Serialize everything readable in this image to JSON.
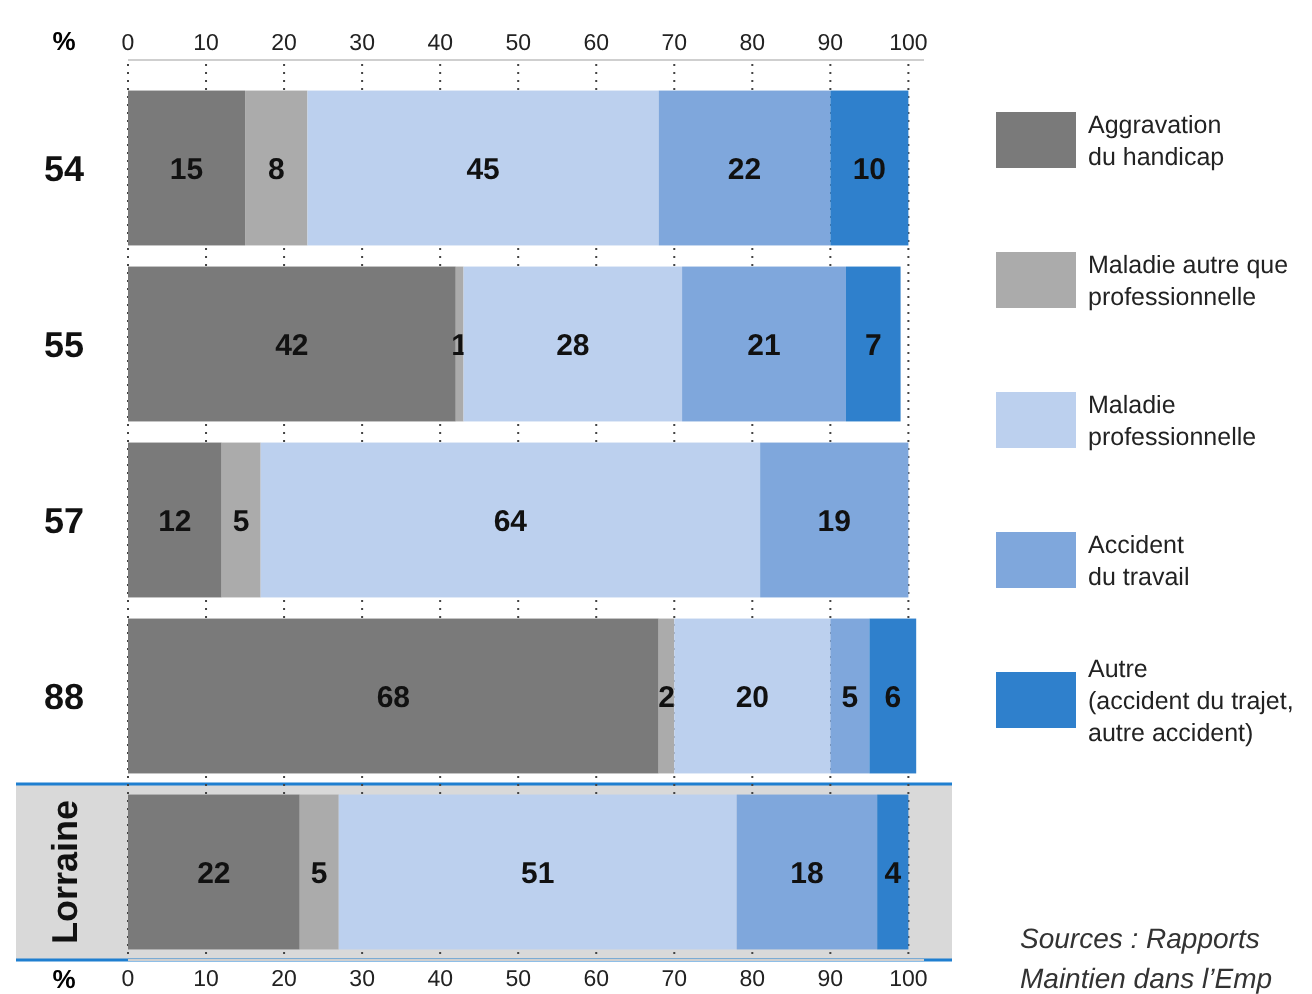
{
  "chart_data": {
    "type": "bar",
    "orientation": "horizontal",
    "stacked": true,
    "categories": [
      "54",
      "55",
      "57",
      "88",
      "Lorraine"
    ],
    "series": [
      {
        "name": "Aggravation\ndu handicap",
        "color": "#7a7a7a",
        "values": [
          15,
          42,
          12,
          68,
          22
        ]
      },
      {
        "name": "Maladie autre que\nprofessionnelle",
        "color": "#ababab",
        "values": [
          8,
          1,
          5,
          2,
          5
        ]
      },
      {
        "name": "Maladie\nprofessionnelle",
        "color": "#bcd0ee",
        "values": [
          45,
          28,
          64,
          20,
          51
        ]
      },
      {
        "name": "Accident\ndu travail",
        "color": "#7fa7dc",
        "values": [
          22,
          21,
          19,
          5,
          18
        ]
      },
      {
        "name": "Autre\n(accident du trajet,\nautre accident)",
        "color": "#2f80cc",
        "values": [
          10,
          7,
          null,
          6,
          4
        ]
      }
    ],
    "xlim": [
      0,
      102
    ],
    "xticks": [
      0,
      10,
      20,
      30,
      40,
      50,
      60,
      70,
      80,
      90,
      100
    ],
    "x2lim": [
      0,
      102
    ],
    "x2ticks": [
      0,
      10,
      20,
      30,
      40,
      50,
      60,
      70,
      80,
      90,
      100
    ],
    "xlabel": "%",
    "x2label": "%",
    "grid": "x",
    "legend": "right",
    "data_labels": true,
    "bands": [
      {
        "axis": "y",
        "from": "Lorraine",
        "to": "Lorraine",
        "color": "#d9d9d9"
      }
    ],
    "annotations": [
      "Sources : Rapports\nMaintien dans l’Emp"
    ]
  }
}
